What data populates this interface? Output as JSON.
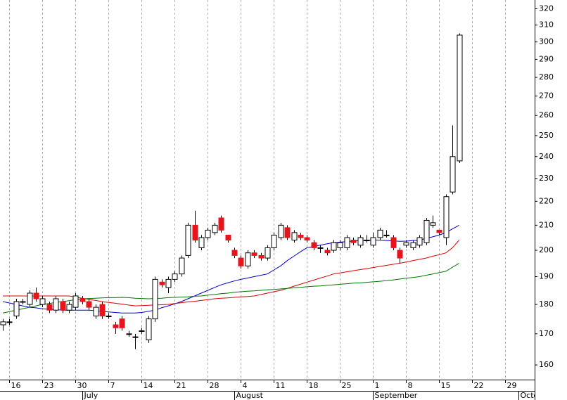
{
  "chart_data": {
    "type": "candlestick",
    "categories": [
      "Jun 13",
      "Jun 16",
      "Jun 17",
      "Jun 18",
      "Jun 19",
      "Jun 20",
      "Jun 23",
      "Jun 24",
      "Jun 25",
      "Jun 26",
      "Jun 27",
      "Jun 30",
      "Jul 1",
      "Jul 2",
      "Jul 3",
      "Jul 4",
      "Jul 7",
      "Jul 8",
      "Jul 9",
      "Jul 10",
      "Jul 11",
      "Jul 14",
      "Jul 15",
      "Jul 16",
      "Jul 17",
      "Jul 18",
      "Jul 21",
      "Jul 22",
      "Jul 23",
      "Jul 24",
      "Jul 25",
      "Jul 28",
      "Jul 29",
      "Jul 30",
      "Jul 31",
      "Aug 1",
      "Aug 4",
      "Aug 5",
      "Aug 6",
      "Aug 7",
      "Aug 8",
      "Aug 11",
      "Aug 12",
      "Aug 13",
      "Aug 14",
      "Aug 15",
      "Aug 18",
      "Aug 19",
      "Aug 20",
      "Aug 21",
      "Aug 22",
      "Aug 25",
      "Aug 26",
      "Aug 27",
      "Aug 28",
      "Aug 29",
      "Sep 1",
      "Sep 2",
      "Sep 3",
      "Sep 4",
      "Sep 5",
      "Sep 8",
      "Sep 9",
      "Sep 10",
      "Sep 11",
      "Sep 12",
      "Sep 15",
      "Sep 16",
      "Sep 17",
      "Sep 18",
      "Sep 19",
      "Sep 22",
      "Sep 23",
      "Sep 24",
      "Sep 25",
      "Sep 26",
      "Sep 29",
      "Sep 30",
      "Oct 1"
    ],
    "open": [
      173,
      174,
      176,
      181,
      180,
      184,
      180,
      180,
      178,
      181,
      178,
      179,
      182,
      181,
      176,
      180,
      176,
      173,
      175,
      170,
      169,
      171,
      168,
      175,
      188,
      186,
      189,
      191,
      198,
      210,
      201,
      205,
      207,
      213,
      206,
      200,
      197,
      194,
      199,
      198,
      197,
      201,
      205,
      209,
      204,
      206,
      205,
      203,
      201,
      200,
      200,
      201,
      201,
      204,
      202,
      204,
      202,
      205,
      206,
      205,
      200,
      202,
      201,
      202,
      203,
      210,
      208,
      205,
      224,
      238,
      null,
      null,
      null,
      null,
      null,
      null,
      null,
      null,
      null
    ],
    "high": [
      175,
      175,
      182,
      182,
      185,
      186,
      183,
      181,
      183,
      182,
      181,
      184,
      183,
      182,
      180,
      181,
      177,
      174,
      176,
      171,
      170,
      172,
      176,
      190,
      189,
      190,
      192,
      198,
      211,
      216,
      206,
      209,
      211,
      214,
      206,
      201,
      198,
      200,
      200,
      199,
      202,
      207,
      211,
      210,
      208,
      207,
      206,
      204,
      202,
      201,
      204,
      204,
      206,
      205,
      206,
      206,
      207,
      209,
      208,
      206,
      201,
      204,
      204,
      206,
      213,
      214,
      208,
      223,
      255,
      305,
      null,
      null,
      null,
      null,
      null,
      null,
      null,
      null,
      null
    ],
    "low": [
      171,
      173,
      175,
      180,
      179,
      181,
      179,
      177,
      177,
      177,
      177,
      178,
      180,
      178,
      175,
      175,
      175,
      170,
      171,
      169,
      165,
      170,
      167,
      174,
      186,
      184,
      188,
      190,
      197,
      203,
      200,
      204,
      206,
      207,
      203,
      197,
      193,
      193,
      197,
      196,
      196,
      200,
      204,
      204,
      203,
      204,
      203,
      200,
      199,
      198,
      199,
      200,
      200,
      202,
      201,
      203,
      201,
      204,
      205,
      200,
      195,
      201,
      200,
      201,
      202,
      209,
      206,
      202,
      223,
      237,
      null,
      null,
      null,
      null,
      null,
      null,
      null,
      null,
      null
    ],
    "close": [
      174,
      174,
      181,
      181,
      184,
      182,
      182,
      178,
      182,
      178,
      180,
      183,
      181,
      179,
      179,
      176,
      176,
      172,
      172,
      170,
      169,
      171,
      175,
      189,
      187,
      189,
      191,
      197,
      210,
      204,
      205,
      208,
      210,
      208,
      204,
      198,
      194,
      199,
      198,
      197,
      201,
      206,
      210,
      205,
      207,
      205,
      204,
      201,
      201,
      199,
      203,
      203,
      205,
      203,
      205,
      204,
      205,
      208,
      206,
      201,
      197,
      203,
      203,
      205,
      212,
      211,
      207,
      222,
      240,
      304,
      null,
      null,
      null,
      null,
      null,
      null,
      null,
      null,
      null
    ],
    "up_color": "#ffffff",
    "down_color": "#e8141c",
    "outline_color": "#000000",
    "lines": [
      {
        "color": "#0000cc",
        "values": [
          181,
          180.5,
          180,
          179.5,
          179,
          178.8,
          178.5,
          178.3,
          178.2,
          178,
          178,
          178,
          178,
          178,
          177.8,
          177.6,
          177.4,
          177.2,
          177,
          177,
          177,
          177.2,
          177.6,
          178,
          178.8,
          179.5,
          180.2,
          181,
          182,
          183,
          184,
          185,
          186,
          187,
          187.7,
          188.4,
          189,
          189.5,
          190,
          190.5,
          191,
          192.5,
          194,
          196,
          197.7,
          199.4,
          201,
          201.5,
          202,
          202.5,
          203,
          203.2,
          203.4,
          203.6,
          203.8,
          204,
          204,
          204,
          203.8,
          203.7,
          203.5,
          203.6,
          203.8,
          204,
          204.7,
          205.3,
          206,
          207,
          208.5,
          210,
          null,
          null,
          null,
          null,
          null,
          null,
          null,
          null,
          null
        ]
      },
      {
        "color": "#dd0000",
        "values": [
          183,
          183,
          183,
          183,
          183,
          183,
          183,
          183,
          183,
          183,
          183,
          182.6,
          182.2,
          181.8,
          181.4,
          181,
          180.7,
          180.4,
          180.1,
          179.8,
          179.5,
          179.6,
          179.7,
          179.8,
          179.9,
          180,
          180.3,
          180.6,
          180.9,
          181.1,
          181.4,
          181.7,
          182,
          182.2,
          182.3,
          182.5,
          182.7,
          182.8,
          183,
          183.5,
          184,
          184.5,
          185,
          185.7,
          186.5,
          187.2,
          188,
          188.7,
          189.5,
          190.2,
          191,
          191.4,
          191.8,
          192.2,
          192.6,
          193,
          193.4,
          193.8,
          194.2,
          194.6,
          195,
          195.5,
          196,
          196.5,
          197,
          197.7,
          198.3,
          199,
          201,
          204,
          null,
          null,
          null,
          null,
          null,
          null,
          null,
          null,
          null
        ]
      },
      {
        "color": "#007700",
        "values": [
          177,
          177.5,
          178,
          178.5,
          179,
          179.5,
          180,
          180.3,
          180.7,
          181,
          181.3,
          181.7,
          182,
          182.1,
          182.2,
          182.3,
          182.4,
          182.4,
          182.5,
          182.4,
          182.2,
          182.1,
          182,
          182.1,
          182.2,
          182.4,
          182.5,
          182.6,
          182.7,
          182.9,
          183,
          183.3,
          183.5,
          183.8,
          184,
          184.3,
          184.5,
          184.7,
          184.8,
          185,
          185.2,
          185.3,
          185.5,
          185.7,
          185.9,
          186.1,
          186.3,
          186.5,
          186.6,
          186.8,
          187,
          187.2,
          187.4,
          187.6,
          187.7,
          187.9,
          188.1,
          188.3,
          188.5,
          188.8,
          189.1,
          189.4,
          189.7,
          190,
          190.5,
          191,
          191.5,
          192,
          193.5,
          195,
          null,
          null,
          null,
          null,
          null,
          null,
          null,
          null,
          null
        ]
      }
    ],
    "ylim": [
      155.5,
      325.5
    ],
    "log_scale": true,
    "yticks": [
      160,
      170,
      180,
      190,
      200,
      210,
      220,
      230,
      240,
      250,
      260,
      270,
      280,
      290,
      300,
      310,
      320
    ],
    "xticks": [
      {
        "value": "Jun 16",
        "label": "16"
      },
      {
        "value": "Jun 23",
        "label": "23"
      },
      {
        "value": "Jun 30",
        "label": "30"
      },
      {
        "value": "Jul 7",
        "label": "7"
      },
      {
        "value": "Jul 14",
        "label": "14"
      },
      {
        "value": "Jul 21",
        "label": "21"
      },
      {
        "value": "Jul 28",
        "label": "28"
      },
      {
        "value": "Aug 4",
        "label": "4"
      },
      {
        "value": "Aug 11",
        "label": "11"
      },
      {
        "value": "Aug 18",
        "label": "18"
      },
      {
        "value": "Aug 25",
        "label": "25"
      },
      {
        "value": "Sep 1",
        "label": "1"
      },
      {
        "value": "Sep 8",
        "label": "8"
      },
      {
        "value": "Sep 15",
        "label": "15"
      },
      {
        "value": "Sep 22",
        "label": "22"
      },
      {
        "value": "Sep 29",
        "label": "29"
      }
    ],
    "month_labels": [
      {
        "value": "Jul 1",
        "label": "July"
      },
      {
        "value": "Aug 1",
        "label": "August"
      },
      {
        "value": "Sep 1",
        "label": "September"
      },
      {
        "value": "Oct 1",
        "label": "Octo"
      }
    ],
    "grid": true
  }
}
